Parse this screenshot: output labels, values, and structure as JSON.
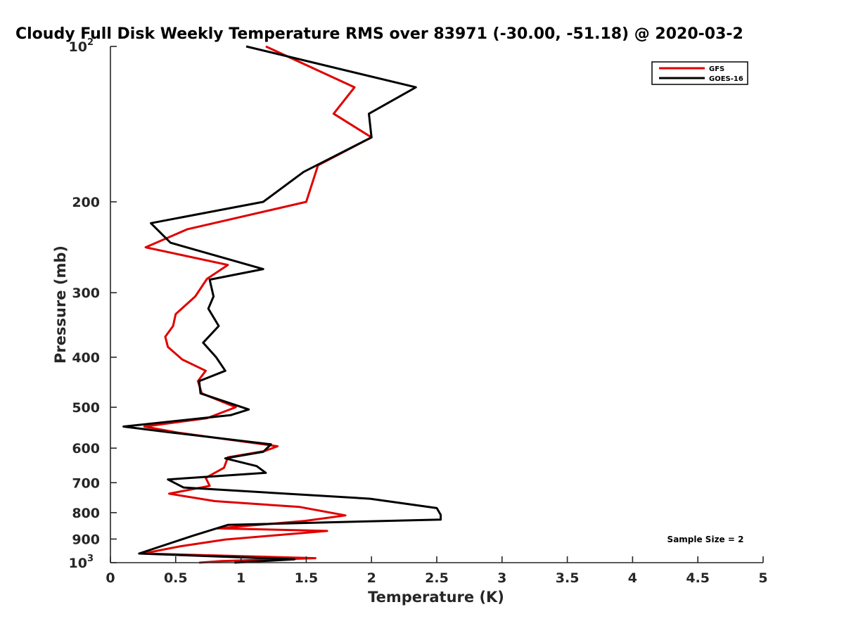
{
  "chart_data": {
    "type": "line",
    "title": "Cloudy Full Disk Weekly Temperature RMS over 83971 (-30.00, -51.18) @ 2020-03-2",
    "xlabel": "Temperature (K)",
    "ylabel": "Pressure (mb)",
    "xlim": [
      0,
      5
    ],
    "ylim": [
      100,
      1000
    ],
    "yscale": "log",
    "y_reversed": true,
    "grid": false,
    "legend_position": "top-right",
    "x_ticks": [
      "0",
      "0.5",
      "1",
      "1.5",
      "2",
      "2.5",
      "3",
      "3.5",
      "4",
      "4.5",
      "5"
    ],
    "x_tick_values": [
      0,
      0.5,
      1,
      1.5,
      2,
      2.5,
      3,
      3.5,
      4,
      4.5,
      5
    ],
    "y_ticks": [
      {
        "value": 100,
        "base": "10",
        "exp": "2"
      },
      {
        "value": 200,
        "label": "200"
      },
      {
        "value": 300,
        "label": "300"
      },
      {
        "value": 400,
        "label": "400"
      },
      {
        "value": 500,
        "label": "500"
      },
      {
        "value": 600,
        "label": "600"
      },
      {
        "value": 700,
        "label": "700"
      },
      {
        "value": 800,
        "label": "800"
      },
      {
        "value": 900,
        "label": "900"
      },
      {
        "value": 1000,
        "base": "10",
        "exp": "3"
      }
    ],
    "series": [
      {
        "name": "GFS",
        "color": "#e00000",
        "points": [
          [
            1.19,
            100
          ],
          [
            1.87,
            120
          ],
          [
            1.71,
            135
          ],
          [
            2.0,
            150
          ],
          [
            1.59,
            170
          ],
          [
            1.5,
            200
          ],
          [
            0.59,
            226
          ],
          [
            0.27,
            245
          ],
          [
            0.9,
            265
          ],
          [
            0.74,
            282
          ],
          [
            0.65,
            305
          ],
          [
            0.5,
            330
          ],
          [
            0.48,
            348
          ],
          [
            0.42,
            365
          ],
          [
            0.44,
            382
          ],
          [
            0.55,
            404
          ],
          [
            0.73,
            425
          ],
          [
            0.67,
            445
          ],
          [
            0.7,
            470
          ],
          [
            0.96,
            500
          ],
          [
            0.74,
            525
          ],
          [
            0.26,
            545
          ],
          [
            0.52,
            560
          ],
          [
            1.28,
            595
          ],
          [
            1.18,
            608
          ],
          [
            0.9,
            625
          ],
          [
            0.87,
            655
          ],
          [
            0.73,
            685
          ],
          [
            0.76,
            710
          ],
          [
            0.45,
            735
          ],
          [
            0.8,
            760
          ],
          [
            1.45,
            780
          ],
          [
            1.8,
            810
          ],
          [
            1.49,
            830
          ],
          [
            0.82,
            858
          ],
          [
            1.66,
            868
          ],
          [
            0.88,
            902
          ],
          [
            0.53,
            930
          ],
          [
            0.25,
            960
          ],
          [
            1.57,
            980
          ],
          [
            0.85,
            993
          ],
          [
            0.68,
            1000
          ]
        ]
      },
      {
        "name": "GOES-16",
        "color": "#000000",
        "points": [
          [
            1.04,
            100
          ],
          [
            2.34,
            120
          ],
          [
            1.98,
            135
          ],
          [
            2.0,
            150
          ],
          [
            1.48,
            175
          ],
          [
            1.17,
            200
          ],
          [
            0.31,
            220
          ],
          [
            0.46,
            240
          ],
          [
            1.17,
            270
          ],
          [
            0.76,
            283
          ],
          [
            0.79,
            305
          ],
          [
            0.75,
            322
          ],
          [
            0.83,
            348
          ],
          [
            0.71,
            375
          ],
          [
            0.81,
            400
          ],
          [
            0.88,
            425
          ],
          [
            0.68,
            445
          ],
          [
            0.69,
            470
          ],
          [
            1.06,
            505
          ],
          [
            0.92,
            518
          ],
          [
            0.1,
            545
          ],
          [
            0.48,
            560
          ],
          [
            1.23,
            590
          ],
          [
            1.17,
            610
          ],
          [
            0.88,
            628
          ],
          [
            1.12,
            650
          ],
          [
            1.19,
            670
          ],
          [
            0.44,
            690
          ],
          [
            0.56,
            715
          ],
          [
            1.99,
            752
          ],
          [
            2.5,
            784
          ],
          [
            2.53,
            808
          ],
          [
            2.53,
            825
          ],
          [
            0.9,
            845
          ],
          [
            0.63,
            887
          ],
          [
            0.22,
            960
          ],
          [
            1.41,
            985
          ],
          [
            0.95,
            1000
          ]
        ]
      }
    ],
    "annotation": "Sample Size = 2"
  }
}
